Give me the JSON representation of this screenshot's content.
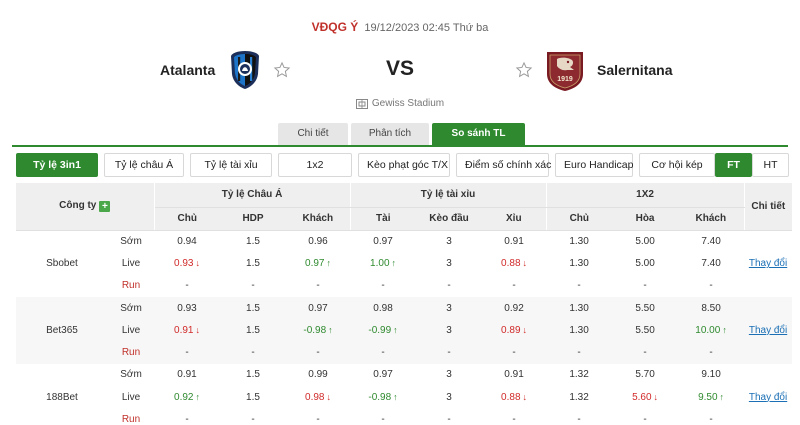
{
  "match": {
    "league": "VĐQG Ý",
    "datetime": "19/12/2023 02:45 Thứ ba",
    "home_team": "Atalanta",
    "away_team": "Salernitana",
    "vs": "VS",
    "stadium": "Gewiss Stadium",
    "away_badge_text": "1919"
  },
  "tabs": [
    {
      "label": "Chi tiết",
      "active": false
    },
    {
      "label": "Phân tích",
      "active": false
    },
    {
      "label": "So sánh TL",
      "active": true
    }
  ],
  "filters": [
    {
      "label": "Tỷ lệ 3in1",
      "active": true
    },
    {
      "label": "Tỷ lệ châu Á",
      "active": false
    },
    {
      "label": "Tỷ lệ tài xỉu",
      "active": false
    },
    {
      "label": "1x2",
      "active": false
    },
    {
      "label": "Kèo phạt góc T/X",
      "active": false
    },
    {
      "label": "Điểm số chính xác",
      "active": false
    },
    {
      "label": "Euro Handicap",
      "active": false
    },
    {
      "label": "Cơ hội kép",
      "active": false
    }
  ],
  "period_toggle": [
    {
      "label": "FT",
      "active": true
    },
    {
      "label": "HT",
      "active": false
    }
  ],
  "table": {
    "company_header": "Công ty",
    "groups": [
      "Tỷ lệ Châu Á",
      "Tỷ lệ tài xỉu",
      "1X2"
    ],
    "detail_header": "Chi tiết",
    "subheaders": [
      "Chủ",
      "HDP",
      "Khách",
      "Tài",
      "Kèo đầu",
      "Xỉu",
      "Chủ",
      "Hòa",
      "Khách"
    ],
    "detail_link": "Thay đổi",
    "bookmakers": [
      {
        "name": "Sbobet",
        "rows": [
          {
            "kind": "Sớm",
            "cells": [
              {
                "v": "0.94"
              },
              {
                "v": "1.5"
              },
              {
                "v": "0.96"
              },
              {
                "v": "0.97"
              },
              {
                "v": "3"
              },
              {
                "v": "0.91"
              },
              {
                "v": "1.30"
              },
              {
                "v": "5.00"
              },
              {
                "v": "7.40"
              }
            ]
          },
          {
            "kind": "Live",
            "cells": [
              {
                "v": "0.93",
                "t": "down"
              },
              {
                "v": "1.5"
              },
              {
                "v": "0.97",
                "t": "up"
              },
              {
                "v": "1.00",
                "t": "up"
              },
              {
                "v": "3"
              },
              {
                "v": "0.88",
                "t": "down"
              },
              {
                "v": "1.30"
              },
              {
                "v": "5.00"
              },
              {
                "v": "7.40"
              }
            ]
          },
          {
            "kind": "Run",
            "cells": [
              {
                "v": "-"
              },
              {
                "v": "-"
              },
              {
                "v": "-"
              },
              {
                "v": "-"
              },
              {
                "v": "-"
              },
              {
                "v": "-"
              },
              {
                "v": "-"
              },
              {
                "v": "-"
              },
              {
                "v": "-"
              }
            ]
          }
        ]
      },
      {
        "name": "Bet365",
        "rows": [
          {
            "kind": "Sớm",
            "cells": [
              {
                "v": "0.93"
              },
              {
                "v": "1.5"
              },
              {
                "v": "0.97"
              },
              {
                "v": "0.98"
              },
              {
                "v": "3"
              },
              {
                "v": "0.92"
              },
              {
                "v": "1.30"
              },
              {
                "v": "5.50"
              },
              {
                "v": "8.50"
              }
            ]
          },
          {
            "kind": "Live",
            "cells": [
              {
                "v": "0.91",
                "t": "down"
              },
              {
                "v": "1.5"
              },
              {
                "v": "-0.98",
                "t": "up"
              },
              {
                "v": "-0.99",
                "t": "up"
              },
              {
                "v": "3"
              },
              {
                "v": "0.89",
                "t": "down"
              },
              {
                "v": "1.30"
              },
              {
                "v": "5.50"
              },
              {
                "v": "10.00",
                "t": "up"
              }
            ]
          },
          {
            "kind": "Run",
            "cells": [
              {
                "v": "-"
              },
              {
                "v": "-"
              },
              {
                "v": "-"
              },
              {
                "v": "-"
              },
              {
                "v": "-"
              },
              {
                "v": "-"
              },
              {
                "v": "-"
              },
              {
                "v": "-"
              },
              {
                "v": "-"
              }
            ]
          }
        ]
      },
      {
        "name": "188Bet",
        "rows": [
          {
            "kind": "Sớm",
            "cells": [
              {
                "v": "0.91"
              },
              {
                "v": "1.5"
              },
              {
                "v": "0.99"
              },
              {
                "v": "0.97"
              },
              {
                "v": "3"
              },
              {
                "v": "0.91"
              },
              {
                "v": "1.32"
              },
              {
                "v": "5.70"
              },
              {
                "v": "9.10"
              }
            ]
          },
          {
            "kind": "Live",
            "cells": [
              {
                "v": "0.92",
                "t": "up"
              },
              {
                "v": "1.5"
              },
              {
                "v": "0.98",
                "t": "down"
              },
              {
                "v": "-0.98",
                "t": "up"
              },
              {
                "v": "3"
              },
              {
                "v": "0.88",
                "t": "down"
              },
              {
                "v": "1.32"
              },
              {
                "v": "5.60",
                "t": "down"
              },
              {
                "v": "9.50",
                "t": "up"
              }
            ]
          },
          {
            "kind": "Run",
            "cells": [
              {
                "v": "-"
              },
              {
                "v": "-"
              },
              {
                "v": "-"
              },
              {
                "v": "-"
              },
              {
                "v": "-"
              },
              {
                "v": "-"
              },
              {
                "v": "-"
              },
              {
                "v": "-"
              },
              {
                "v": "-"
              }
            ]
          }
        ]
      }
    ]
  },
  "icons": {
    "favorite": "star-outline-icon",
    "stadium": "stadium-icon",
    "add": "plus-icon",
    "trend_up": "arrow-up-icon",
    "trend_down": "arrow-down-icon"
  },
  "colors": {
    "accent_green": "#2f8a2f",
    "league_red": "#c0312b",
    "down_red": "#d12a2a",
    "link_blue": "#1a6fb5"
  }
}
